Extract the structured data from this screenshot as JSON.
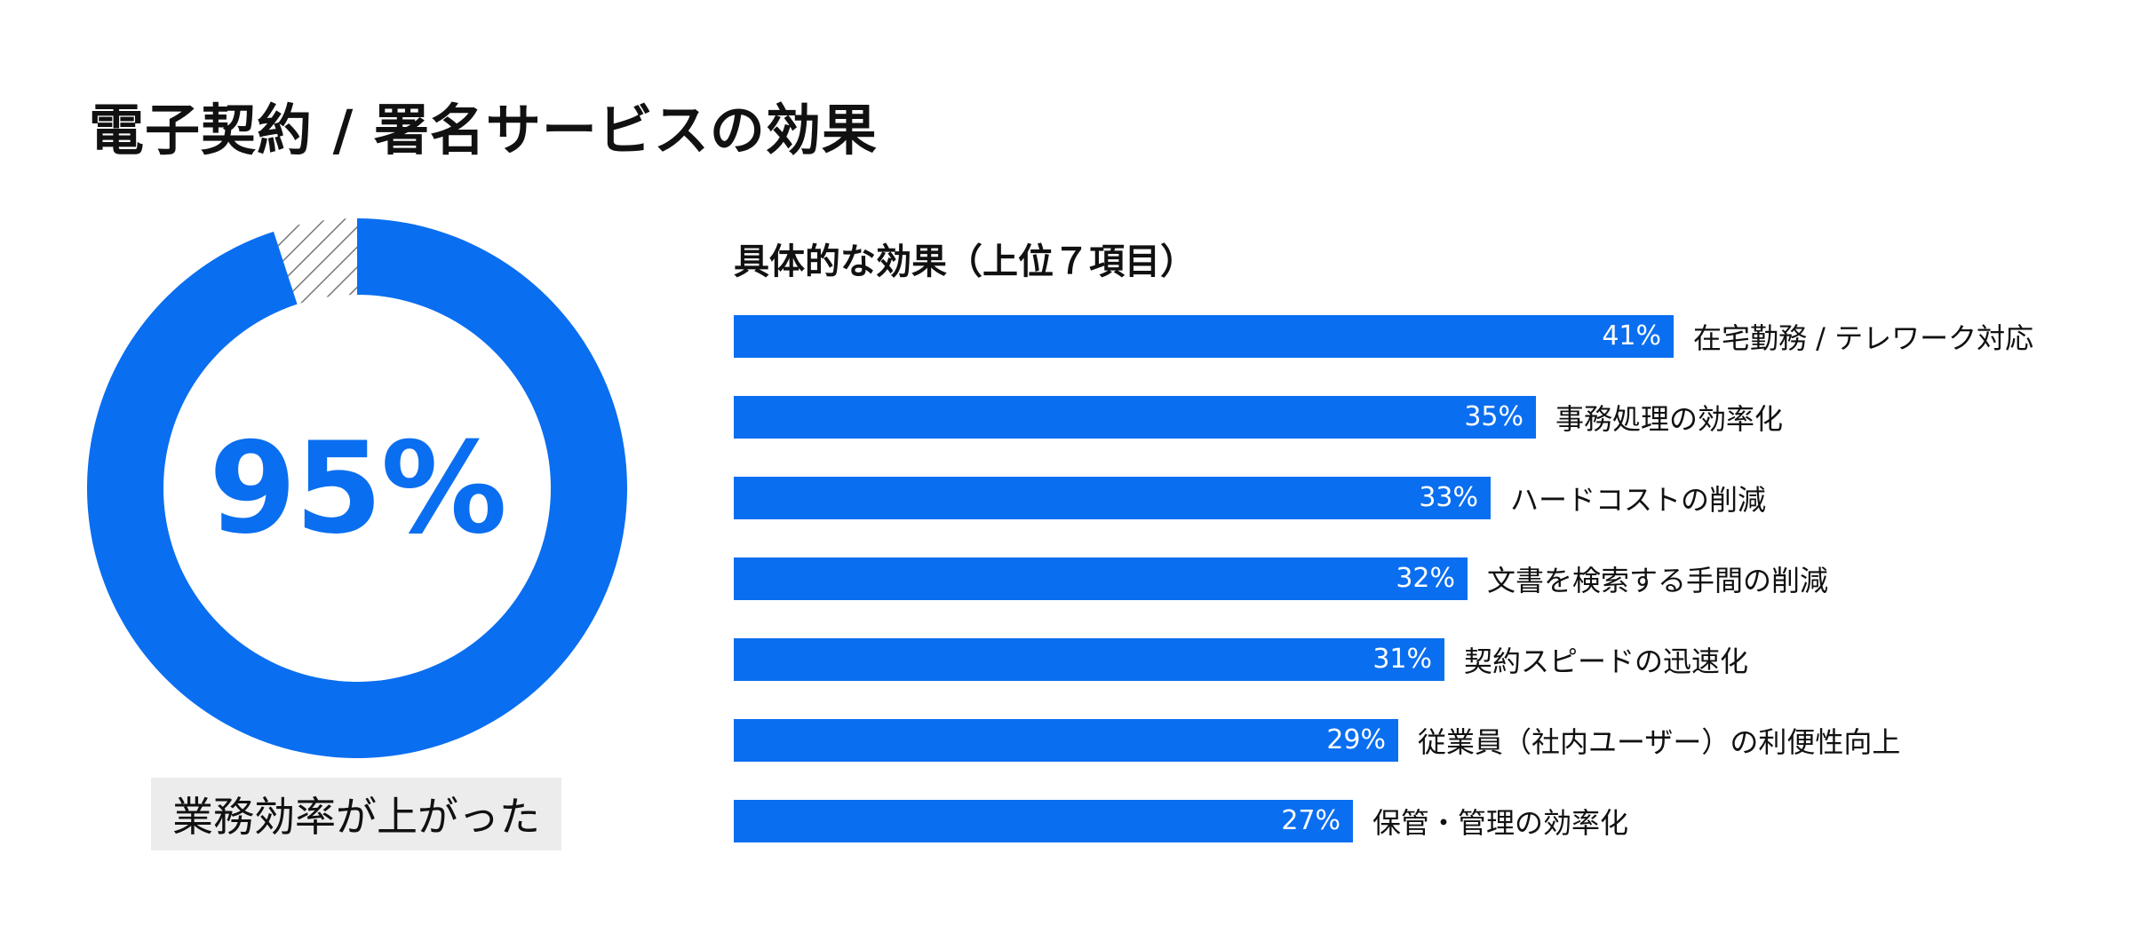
{
  "title": "電子契約 / 署名サービスの効果",
  "donut": {
    "value_label": "95%",
    "percent": 95,
    "caption": "業務効率が上がった",
    "color": "#0a6ef0"
  },
  "chart_data": {
    "type": "bar",
    "orientation": "horizontal",
    "title": "具体的な効果（上位７項目）",
    "categories": [
      "在宅勤務 / テレワーク対応",
      "事務処理の効率化",
      "ハードコストの削減",
      "文書を検索する手間の削減",
      "契約スピードの迅速化",
      "従業員（社内ユーザー）の利便性向上",
      "保管・管理の効率化"
    ],
    "values": [
      41,
      35,
      33,
      32,
      31,
      29,
      27
    ],
    "value_labels": [
      "41%",
      "35%",
      "33%",
      "32%",
      "31%",
      "29%",
      "27%"
    ],
    "unit": "%",
    "bar_color": "#0a6ef0",
    "grid": false
  }
}
